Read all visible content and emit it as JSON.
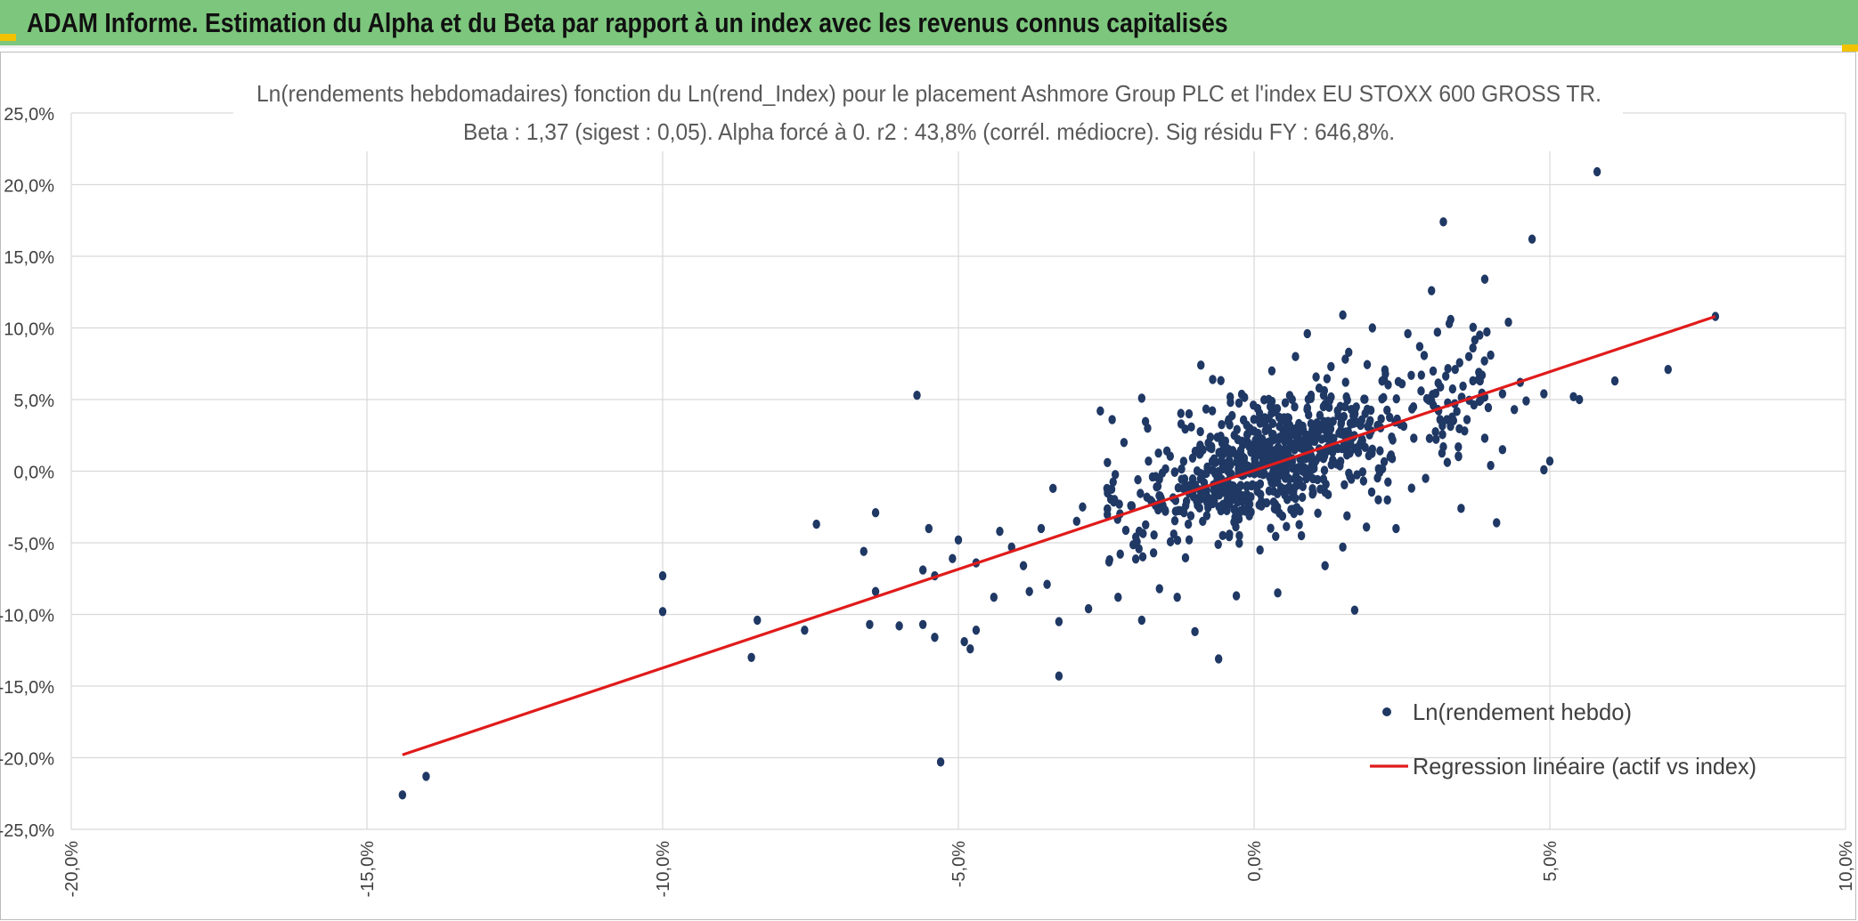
{
  "header": {
    "title": "ADAM Informe. Estimation du Alpha et du Beta par rapport à un index avec les revenus connus capitalisés"
  },
  "colors": {
    "header_bg": "#7dc67d",
    "points": "#1f3864",
    "regression": "#e01b1b",
    "grid": "#d9d9d9"
  },
  "chart_data": {
    "type": "scatter",
    "title": "Ln(rendements hebdomadaires) fonction du Ln(rend_Index) pour le placement Ashmore Group PLC et l'index EU STOXX 600 GROSS TR.",
    "subtitle": "Beta : 1,37 (sigest : 0,05). Alpha forcé à 0. r2 : 43,8% (corrél. médiocre). Sig résidu FY : 646,8%.",
    "xlim": [
      -0.2,
      0.1
    ],
    "ylim": [
      -0.25,
      0.25
    ],
    "x_ticks": [
      "-20,0%",
      "-15,0%",
      "-10,0%",
      "-5,0%",
      "0,0%",
      "5,0%",
      "10,0%"
    ],
    "y_ticks": [
      "25,0%",
      "20,0%",
      "15,0%",
      "10,0%",
      "5,0%",
      "0,0%",
      "-5,0%",
      "-10,0%",
      "-15,0%",
      "-20,0%",
      "-25,0%"
    ],
    "grid": true,
    "legend_position": "bottom-right",
    "series": [
      {
        "name": "Ln(rendement hebdo)",
        "type": "scatter",
        "points": [
          [
            -0.144,
            -0.226
          ],
          [
            -0.14,
            -0.213
          ],
          [
            -0.1,
            -0.098
          ],
          [
            -0.1,
            -0.073
          ],
          [
            -0.085,
            -0.13
          ],
          [
            -0.084,
            -0.104
          ],
          [
            -0.076,
            -0.111
          ],
          [
            -0.074,
            -0.037
          ],
          [
            -0.066,
            -0.056
          ],
          [
            -0.065,
            -0.107
          ],
          [
            -0.064,
            -0.029
          ],
          [
            -0.064,
            -0.084
          ],
          [
            -0.06,
            -0.108
          ],
          [
            -0.057,
            0.053
          ],
          [
            -0.056,
            -0.107
          ],
          [
            -0.056,
            -0.069
          ],
          [
            -0.055,
            -0.04
          ],
          [
            -0.054,
            -0.116
          ],
          [
            -0.054,
            -0.073
          ],
          [
            -0.053,
            -0.203
          ],
          [
            -0.051,
            -0.061
          ],
          [
            -0.05,
            -0.048
          ],
          [
            -0.049,
            -0.119
          ],
          [
            -0.048,
            -0.124
          ],
          [
            -0.047,
            -0.064
          ],
          [
            -0.047,
            -0.111
          ],
          [
            -0.044,
            -0.088
          ],
          [
            -0.043,
            -0.042
          ],
          [
            -0.041,
            -0.053
          ],
          [
            -0.039,
            -0.066
          ],
          [
            -0.038,
            -0.084
          ],
          [
            -0.036,
            -0.04
          ],
          [
            -0.035,
            -0.079
          ],
          [
            -0.034,
            -0.012
          ],
          [
            -0.033,
            -0.143
          ],
          [
            -0.033,
            -0.105
          ],
          [
            -0.03,
            -0.035
          ],
          [
            -0.029,
            -0.025
          ],
          [
            -0.028,
            -0.096
          ],
          [
            -0.026,
            0.042
          ],
          [
            -0.024,
            0.036
          ],
          [
            -0.023,
            -0.088
          ],
          [
            -0.022,
            0.02
          ],
          [
            -0.02,
            -0.046
          ],
          [
            -0.019,
            -0.104
          ],
          [
            -0.019,
            0.051
          ],
          [
            -0.018,
            0.03
          ],
          [
            -0.017,
            -0.057
          ],
          [
            -0.016,
            -0.082
          ],
          [
            -0.015,
            -0.028
          ],
          [
            -0.013,
            -0.088
          ],
          [
            -0.012,
            -0.012
          ],
          [
            -0.011,
            0.04
          ],
          [
            -0.01,
            -0.112
          ],
          [
            -0.009,
            0.074
          ],
          [
            -0.008,
            -0.031
          ],
          [
            -0.007,
            0.064
          ],
          [
            -0.006,
            -0.131
          ],
          [
            -0.004,
            0.048
          ],
          [
            -0.003,
            -0.087
          ],
          [
            -0.002,
            -0.003
          ],
          [
            0.0,
            0.028
          ],
          [
            0.001,
            -0.055
          ],
          [
            0.003,
            0.07
          ],
          [
            0.004,
            -0.085
          ],
          [
            0.005,
            0.015
          ],
          [
            0.007,
            0.08
          ],
          [
            0.008,
            -0.045
          ],
          [
            0.009,
            0.096
          ],
          [
            0.01,
            -0.015
          ],
          [
            0.011,
            0.058
          ],
          [
            0.012,
            -0.066
          ],
          [
            0.013,
            0.073
          ],
          [
            0.014,
            0.005
          ],
          [
            0.015,
            0.109
          ],
          [
            0.015,
            -0.053
          ],
          [
            0.016,
            0.083
          ],
          [
            0.017,
            -0.097
          ],
          [
            0.018,
            0.032
          ],
          [
            0.019,
            -0.039
          ],
          [
            0.02,
            0.1
          ],
          [
            0.021,
            -0.02
          ],
          [
            0.022,
            0.064
          ],
          [
            0.023,
            0.01
          ],
          [
            0.024,
            -0.04
          ],
          [
            0.025,
            0.061
          ],
          [
            0.026,
            0.096
          ],
          [
            0.027,
            0.023
          ],
          [
            0.028,
            0.087
          ],
          [
            0.029,
            -0.005
          ],
          [
            0.03,
            0.126
          ],
          [
            0.03,
            0.049
          ],
          [
            0.031,
            0.097
          ],
          [
            0.032,
            0.017
          ],
          [
            0.032,
            0.174
          ],
          [
            0.033,
            0.103
          ],
          [
            0.034,
            0.071
          ],
          [
            0.035,
            -0.026
          ],
          [
            0.036,
            0.036
          ],
          [
            0.037,
            0.086
          ],
          [
            0.038,
            0.069
          ],
          [
            0.039,
            0.023
          ],
          [
            0.039,
            0.134
          ],
          [
            0.04,
            0.004
          ],
          [
            0.04,
            0.081
          ],
          [
            0.041,
            -0.036
          ],
          [
            0.042,
            0.054
          ],
          [
            0.042,
            0.015
          ],
          [
            0.043,
            0.104
          ],
          [
            0.044,
            0.043
          ],
          [
            0.045,
            0.062
          ],
          [
            0.046,
            0.049
          ],
          [
            0.047,
            0.162
          ],
          [
            0.049,
            0.054
          ],
          [
            0.049,
            0.001
          ],
          [
            0.05,
            0.007
          ],
          [
            0.054,
            0.052
          ],
          [
            0.055,
            0.05
          ],
          [
            0.058,
            0.209
          ],
          [
            0.061,
            0.063
          ],
          [
            0.07,
            0.071
          ],
          [
            0.078,
            0.108
          ]
        ]
      },
      {
        "name": "Regression linéaire (actif vs index)",
        "type": "line",
        "points": [
          [
            -0.144,
            -0.198
          ],
          [
            0.078,
            0.108
          ]
        ]
      }
    ],
    "density_cluster": {
      "center_x": 0.003,
      "center_y": 0.004,
      "count": 780,
      "beta": 1.37
    }
  }
}
